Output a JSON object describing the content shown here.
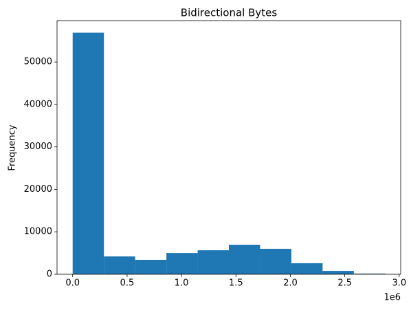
{
  "chart_data": {
    "type": "histogram",
    "title": "Bidirectional Bytes",
    "ylabel": "Frequency",
    "bins": [
      0,
      287000,
      574000,
      861000,
      1148000,
      1435000,
      1722000,
      2009000,
      2296000,
      2583000,
      2870000
    ],
    "values": [
      56900,
      4200,
      3400,
      5000,
      5650,
      6950,
      6000,
      2600,
      800,
      150
    ],
    "color": "#1f77b4",
    "xlim": [
      -143500,
      3013500
    ],
    "xticks": [
      {
        "value": 0,
        "label": "0.0"
      },
      {
        "value": 500000,
        "label": "0.5"
      },
      {
        "value": 1000000,
        "label": "1.0"
      },
      {
        "value": 1500000,
        "label": "1.5"
      },
      {
        "value": 2000000,
        "label": "2.0"
      },
      {
        "value": 2500000,
        "label": "2.5"
      },
      {
        "value": 3000000,
        "label": "3.0"
      }
    ],
    "x_offset_label": "1e6",
    "ylim": [
      0,
      59745
    ],
    "yticks": [
      0,
      10000,
      20000,
      30000,
      40000,
      50000
    ],
    "grid": false
  }
}
